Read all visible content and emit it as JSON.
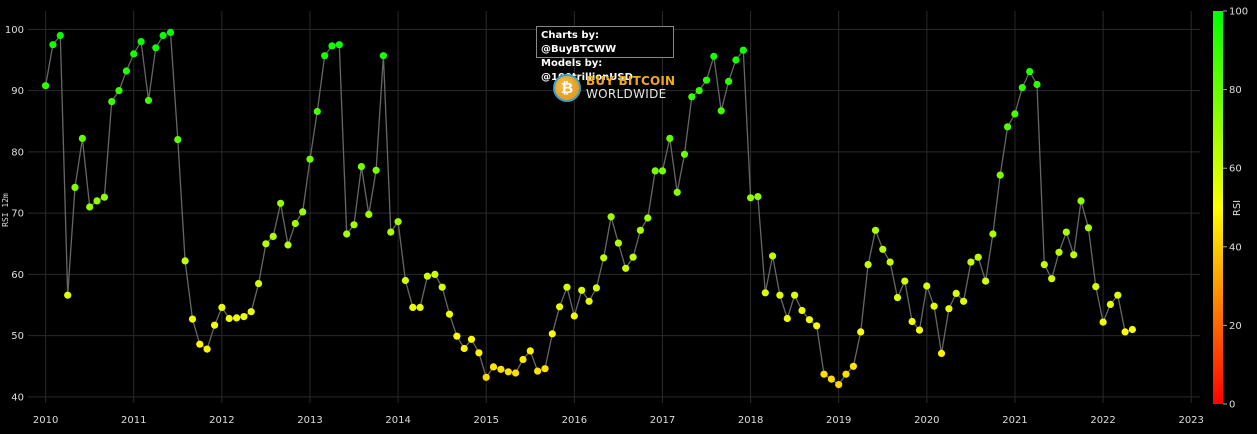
{
  "credits": {
    "line1": "Charts by: @BuyBTCWW",
    "line2": "Models by: @100trillionUSD"
  },
  "logo": {
    "symbol": "₿",
    "top": "BUY BITCOIN",
    "bottom": "WORLDWIDE"
  },
  "chart_data": {
    "type": "scatter",
    "mode": "lines+markers",
    "ylabel": "RSI 12m",
    "xlim": [
      2009.8,
      2023.1
    ],
    "ylim": [
      39,
      103
    ],
    "x_ticks": [
      "2010",
      "2011",
      "2012",
      "2013",
      "2014",
      "2015",
      "2016",
      "2017",
      "2018",
      "2019",
      "2020",
      "2021",
      "2022",
      "2023"
    ],
    "y_ticks": [
      40,
      50,
      60,
      70,
      80,
      90,
      100
    ],
    "grid": true,
    "line_color": "#666666",
    "colorbar": {
      "title": "RSI",
      "range": [
        0,
        100
      ],
      "ticks": [
        0,
        20,
        40,
        60,
        80,
        100
      ],
      "colors": [
        "#ff0000",
        "#ffff00",
        "#00ff00"
      ]
    },
    "series": [
      {
        "x": [
          2010.0,
          2010.083,
          2010.167,
          2010.25,
          2010.333,
          2010.417,
          2010.5,
          2010.583,
          2010.667,
          2010.75,
          2010.833,
          2010.917,
          2011.0,
          2011.083,
          2011.167,
          2011.25,
          2011.333,
          2011.417,
          2011.5,
          2011.583,
          2011.667,
          2011.75,
          2011.833,
          2011.917,
          2012.0,
          2012.083,
          2012.167,
          2012.25,
          2012.333,
          2012.417,
          2012.5,
          2012.583,
          2012.667,
          2012.75,
          2012.833,
          2012.917,
          2013.0,
          2013.083,
          2013.167,
          2013.25,
          2013.333,
          2013.417,
          2013.5,
          2013.583,
          2013.667,
          2013.75,
          2013.833,
          2013.917,
          2014.0,
          2014.083,
          2014.167,
          2014.25,
          2014.333,
          2014.417,
          2014.5,
          2014.583,
          2014.667,
          2014.75,
          2014.833,
          2014.917,
          2015.0,
          2015.083,
          2015.167,
          2015.25,
          2015.333,
          2015.417,
          2015.5,
          2015.583,
          2015.667,
          2015.75,
          2015.833,
          2015.917,
          2016.0,
          2016.083,
          2016.167,
          2016.25,
          2016.333,
          2016.417,
          2016.5,
          2016.583,
          2016.667,
          2016.75,
          2016.833,
          2016.917,
          2017.0,
          2017.083,
          2017.167,
          2017.25,
          2017.333,
          2017.417,
          2017.5,
          2017.583,
          2017.667,
          2017.75,
          2017.833,
          2017.917,
          2018.0,
          2018.083,
          2018.167,
          2018.25,
          2018.333,
          2018.417,
          2018.5,
          2018.583,
          2018.667,
          2018.75,
          2018.833,
          2018.917,
          2019.0,
          2019.083,
          2019.167,
          2019.25,
          2019.333,
          2019.417,
          2019.5,
          2019.583,
          2019.667,
          2019.75,
          2019.833,
          2019.917,
          2020.0,
          2020.083,
          2020.167,
          2020.25,
          2020.333,
          2020.417,
          2020.5,
          2020.583,
          2020.667,
          2020.75,
          2020.833,
          2020.917,
          2021.0,
          2021.083,
          2021.167,
          2021.25,
          2021.333,
          2021.417,
          2021.5,
          2021.583,
          2021.667,
          2021.75,
          2021.833,
          2021.917,
          2022.0,
          2022.083,
          2022.167,
          2022.25,
          2022.333
        ],
        "y": [
          90.8,
          97.5,
          99.0,
          56.6,
          74.2,
          82.2,
          71.0,
          72.0,
          72.6,
          88.2,
          90.0,
          93.2,
          96.0,
          98.0,
          88.4,
          97.0,
          99.0,
          99.5,
          82.0,
          62.2,
          52.7,
          48.6,
          47.8,
          51.7,
          54.6,
          52.8,
          52.9,
          53.1,
          53.9,
          58.5,
          65.0,
          66.2,
          71.6,
          64.8,
          68.3,
          70.2,
          78.8,
          86.6,
          95.7,
          97.3,
          97.5,
          66.6,
          68.1,
          77.6,
          69.8,
          77.0,
          95.7,
          66.9,
          68.6,
          59.0,
          54.6,
          54.6,
          59.7,
          60.0,
          57.9,
          53.5,
          49.9,
          47.9,
          49.4,
          47.2,
          43.2,
          44.9,
          44.5,
          44.1,
          43.9,
          46.1,
          47.5,
          44.2,
          44.6,
          50.3,
          54.7,
          57.9,
          53.2,
          57.4,
          55.6,
          57.8,
          62.7,
          69.4,
          65.1,
          61.0,
          62.8,
          67.2,
          69.2,
          76.9,
          76.9,
          82.2,
          73.4,
          79.6,
          89.0,
          90.0,
          91.7,
          95.6,
          86.7,
          91.5,
          95.0,
          96.6,
          72.5,
          72.7,
          57.0,
          63.0,
          56.6,
          52.8,
          56.6,
          54.1,
          52.6,
          51.6,
          43.7,
          42.9,
          42.0,
          43.7,
          45.0,
          50.6,
          61.6,
          67.2,
          64.1,
          62.0,
          56.2,
          58.9,
          52.3,
          50.9,
          58.1,
          54.8,
          47.1,
          54.4,
          56.9,
          55.6,
          62.0,
          62.8,
          58.9,
          66.6,
          76.2,
          84.1,
          86.2,
          90.5,
          93.1,
          91.0,
          61.6,
          59.3,
          63.6,
          66.9,
          63.2,
          72.0,
          67.6,
          58.0,
          52.2,
          55.1,
          56.6,
          50.6,
          51.0
        ]
      }
    ]
  }
}
